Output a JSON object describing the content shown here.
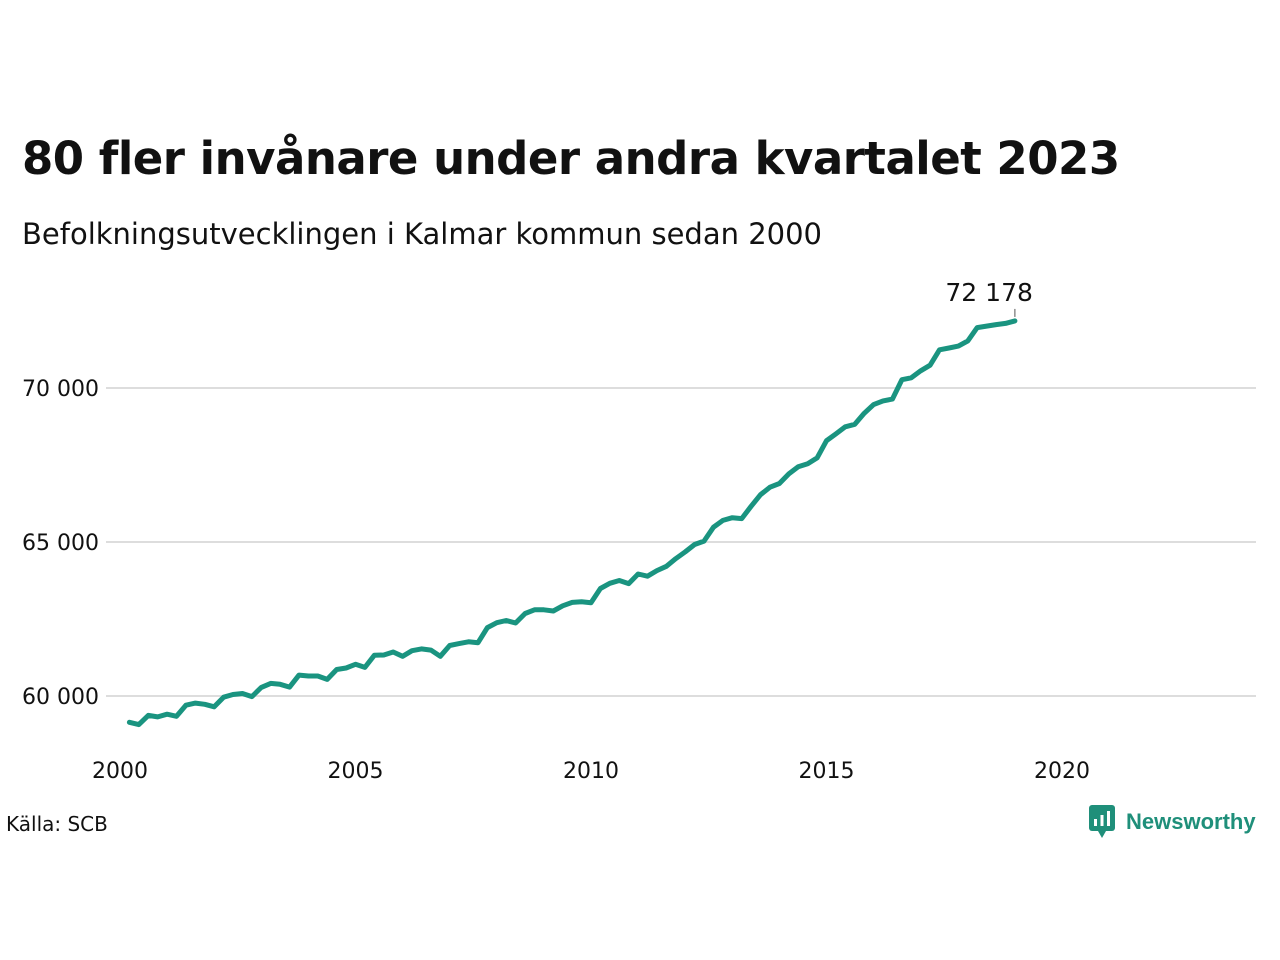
{
  "chart_data": {
    "type": "line",
    "title": "80 fler invånare under andra kvartalet 2023",
    "subtitle": "Befolkningsutvecklingen i Kalmar kommun sedan 2000",
    "xlabel": "",
    "ylabel": "",
    "xlim": [
      2000,
      2024.2
    ],
    "ylim": [
      58800,
      72500
    ],
    "x_ticks": [
      {
        "value": 2000,
        "label": "2000"
      },
      {
        "value": 2005,
        "label": "2005"
      },
      {
        "value": 2010,
        "label": "2010"
      },
      {
        "value": 2015,
        "label": "2015"
      },
      {
        "value": 2020,
        "label": "2020"
      }
    ],
    "y_ticks": [
      {
        "value": 60000,
        "label": "60 000"
      },
      {
        "value": 65000,
        "label": "65 000"
      },
      {
        "value": 70000,
        "label": "70 000"
      }
    ],
    "grid": true,
    "end_label": "72 178",
    "series": [
      {
        "color": "#1a9480",
        "points": [
          [
            2000.2,
            59145
          ],
          [
            2000.4,
            59070
          ],
          [
            2000.6,
            59370
          ],
          [
            2000.8,
            59320
          ],
          [
            2001.0,
            59410
          ],
          [
            2001.2,
            59340
          ],
          [
            2001.4,
            59700
          ],
          [
            2001.6,
            59770
          ],
          [
            2001.8,
            59730
          ],
          [
            2002.0,
            59650
          ],
          [
            2002.2,
            59960
          ],
          [
            2002.4,
            60050
          ],
          [
            2002.6,
            60080
          ],
          [
            2002.8,
            59980
          ],
          [
            2003.0,
            60280
          ],
          [
            2003.2,
            60410
          ],
          [
            2003.4,
            60380
          ],
          [
            2003.6,
            60290
          ],
          [
            2003.8,
            60680
          ],
          [
            2004.0,
            60650
          ],
          [
            2004.2,
            60650
          ],
          [
            2004.4,
            60540
          ],
          [
            2004.6,
            60860
          ],
          [
            2004.8,
            60910
          ],
          [
            2005.0,
            61030
          ],
          [
            2005.2,
            60930
          ],
          [
            2005.4,
            61320
          ],
          [
            2005.6,
            61330
          ],
          [
            2005.8,
            61430
          ],
          [
            2006.0,
            61290
          ],
          [
            2006.2,
            61470
          ],
          [
            2006.4,
            61530
          ],
          [
            2006.6,
            61490
          ],
          [
            2006.8,
            61290
          ],
          [
            2007.0,
            61640
          ],
          [
            2007.2,
            61700
          ],
          [
            2007.4,
            61760
          ],
          [
            2007.6,
            61730
          ],
          [
            2007.8,
            62220
          ],
          [
            2008.0,
            62380
          ],
          [
            2008.2,
            62450
          ],
          [
            2008.4,
            62370
          ],
          [
            2008.6,
            62680
          ],
          [
            2008.8,
            62800
          ],
          [
            2009.0,
            62800
          ],
          [
            2009.2,
            62760
          ],
          [
            2009.4,
            62930
          ],
          [
            2009.6,
            63040
          ],
          [
            2009.8,
            63060
          ],
          [
            2010.0,
            63030
          ],
          [
            2010.2,
            63490
          ],
          [
            2010.4,
            63660
          ],
          [
            2010.6,
            63750
          ],
          [
            2010.8,
            63650
          ],
          [
            2011.0,
            63960
          ],
          [
            2011.2,
            63890
          ],
          [
            2011.4,
            64070
          ],
          [
            2011.6,
            64210
          ],
          [
            2011.8,
            64460
          ],
          [
            2012.0,
            64680
          ],
          [
            2012.2,
            64920
          ],
          [
            2012.4,
            65030
          ],
          [
            2012.6,
            65480
          ],
          [
            2012.8,
            65700
          ],
          [
            2013.0,
            65790
          ],
          [
            2013.2,
            65760
          ],
          [
            2013.4,
            66160
          ],
          [
            2013.6,
            66540
          ],
          [
            2013.8,
            66780
          ],
          [
            2014.0,
            66900
          ],
          [
            2014.2,
            67210
          ],
          [
            2014.4,
            67440
          ],
          [
            2014.6,
            67540
          ],
          [
            2014.8,
            67730
          ],
          [
            2015.0,
            68290
          ],
          [
            2015.2,
            68510
          ],
          [
            2015.4,
            68740
          ],
          [
            2015.6,
            68820
          ],
          [
            2015.8,
            69180
          ],
          [
            2016.0,
            69460
          ],
          [
            2016.2,
            69580
          ],
          [
            2016.4,
            69640
          ],
          [
            2016.6,
            70270
          ],
          [
            2016.8,
            70330
          ],
          [
            2017.0,
            70560
          ],
          [
            2017.2,
            70740
          ],
          [
            2017.4,
            71240
          ],
          [
            2017.6,
            71300
          ],
          [
            2017.8,
            71360
          ],
          [
            2018.0,
            71530
          ],
          [
            2018.2,
            71960
          ],
          [
            2018.4,
            72010
          ],
          [
            2018.6,
            72060
          ],
          [
            2018.8,
            72098
          ],
          [
            2019.0,
            72178
          ]
        ]
      }
    ]
  },
  "footer": {
    "source": "Källa: SCB",
    "brand": "Newsworthy"
  },
  "colors": {
    "line": "#1a9480",
    "grid": "#dddddd",
    "brand": "#1f8f7a"
  }
}
